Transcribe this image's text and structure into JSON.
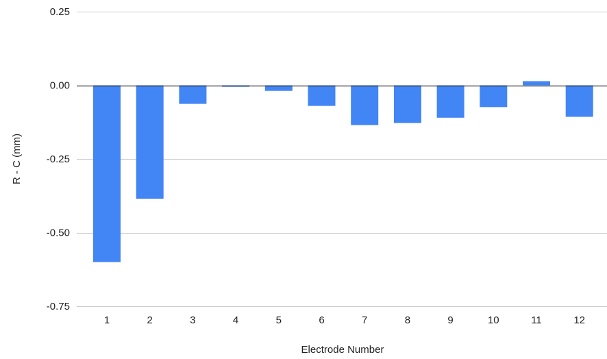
{
  "chart_data": {
    "type": "bar",
    "title": "",
    "xlabel": "Electrode Number",
    "ylabel": "R - C (mm)",
    "categories": [
      "1",
      "2",
      "3",
      "4",
      "5",
      "6",
      "7",
      "8",
      "9",
      "10",
      "11",
      "12"
    ],
    "series": [
      {
        "values": [
          -0.6,
          -0.385,
          -0.063,
          -0.005,
          -0.019,
          -0.07,
          -0.135,
          -0.128,
          -0.11,
          -0.074,
          0.014,
          -0.107
        ]
      }
    ],
    "ylim": [
      -0.75,
      0.25
    ],
    "yticks": [
      0.25,
      0.0,
      -0.25,
      -0.5,
      -0.75
    ],
    "ytick_labels": [
      "0.25",
      "0.00",
      "-0.25",
      "-0.50",
      "-0.75"
    ],
    "grid": "horizontal",
    "legend": "none",
    "colors": {
      "bar": "#4285f4",
      "grid": "#cccccc",
      "zero_line": "#333333",
      "text": "#222222"
    }
  }
}
